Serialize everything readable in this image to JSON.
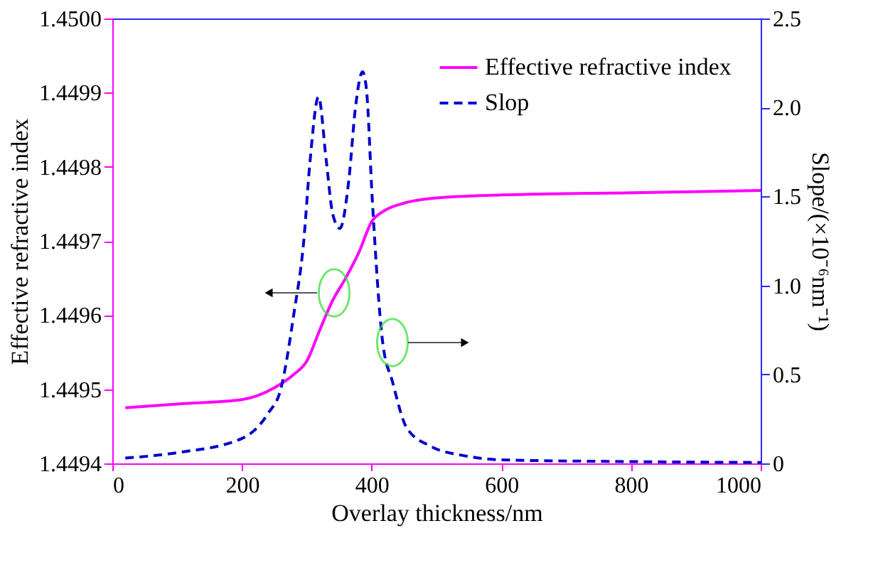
{
  "chart_data": {
    "type": "line",
    "xlabel": "Overlay thickness/nm",
    "ylabel": "Effective refractive index",
    "y2label": "Slope/(×10⁻⁶nm⁻¹)",
    "xlim": [
      0,
      1000
    ],
    "xticks": [
      0,
      200,
      400,
      600,
      800,
      1000
    ],
    "ylim": [
      1.4494,
      1.45
    ],
    "yticks": [
      {
        "value": 1.4494,
        "label": "1.4494"
      },
      {
        "value": 1.4495,
        "label": "1.4495"
      },
      {
        "value": 1.4496,
        "label": "1.4496"
      },
      {
        "value": 1.4497,
        "label": "1.4497"
      },
      {
        "value": 1.4498,
        "label": "1.4498"
      },
      {
        "value": 1.4499,
        "label": "1.4499"
      },
      {
        "value": 1.45,
        "label": "1.4500"
      }
    ],
    "y2lim": [
      0,
      2.5
    ],
    "y2ticks": [
      0,
      0.5,
      {
        "value": 1,
        "label": "1.0"
      },
      1.5,
      {
        "value": 2,
        "label": "2.0"
      },
      2.5
    ],
    "legend": "top right",
    "grid": false,
    "series": [
      {
        "name": "Effective refractive index",
        "color": "#ff00ff",
        "line_style": "solid",
        "x": [
          20,
          100,
          200,
          250,
          280,
          300,
          320,
          340,
          360,
          380,
          400,
          420,
          450,
          500,
          600,
          800,
          1000
        ],
        "values": [
          1.449475,
          1.44948,
          1.449486,
          1.449502,
          1.44952,
          1.449538,
          1.44958,
          1.44962,
          1.44965,
          1.449684,
          1.449726,
          1.449741,
          1.449751,
          1.449758,
          1.449762,
          1.449765,
          1.449768
        ]
      },
      {
        "name": "Slop",
        "color": "#0000cc",
        "line_style": "dashed",
        "axis": "y2",
        "x": [
          20,
          100,
          200,
          240,
          260,
          280,
          295,
          305,
          318,
          330,
          340,
          351,
          365,
          375,
          386,
          392,
          401,
          417,
          432,
          454,
          489,
          548,
          600,
          800,
          1000
        ],
        "values": [
          0.03,
          0.06,
          0.14,
          0.28,
          0.42,
          0.84,
          1.24,
          1.7,
          2.06,
          1.7,
          1.4,
          1.32,
          1.6,
          2.0,
          2.2,
          2.1,
          1.48,
          0.68,
          0.46,
          0.2,
          0.1,
          0.04,
          0.02,
          0.01,
          0.005
        ]
      }
    ]
  }
}
